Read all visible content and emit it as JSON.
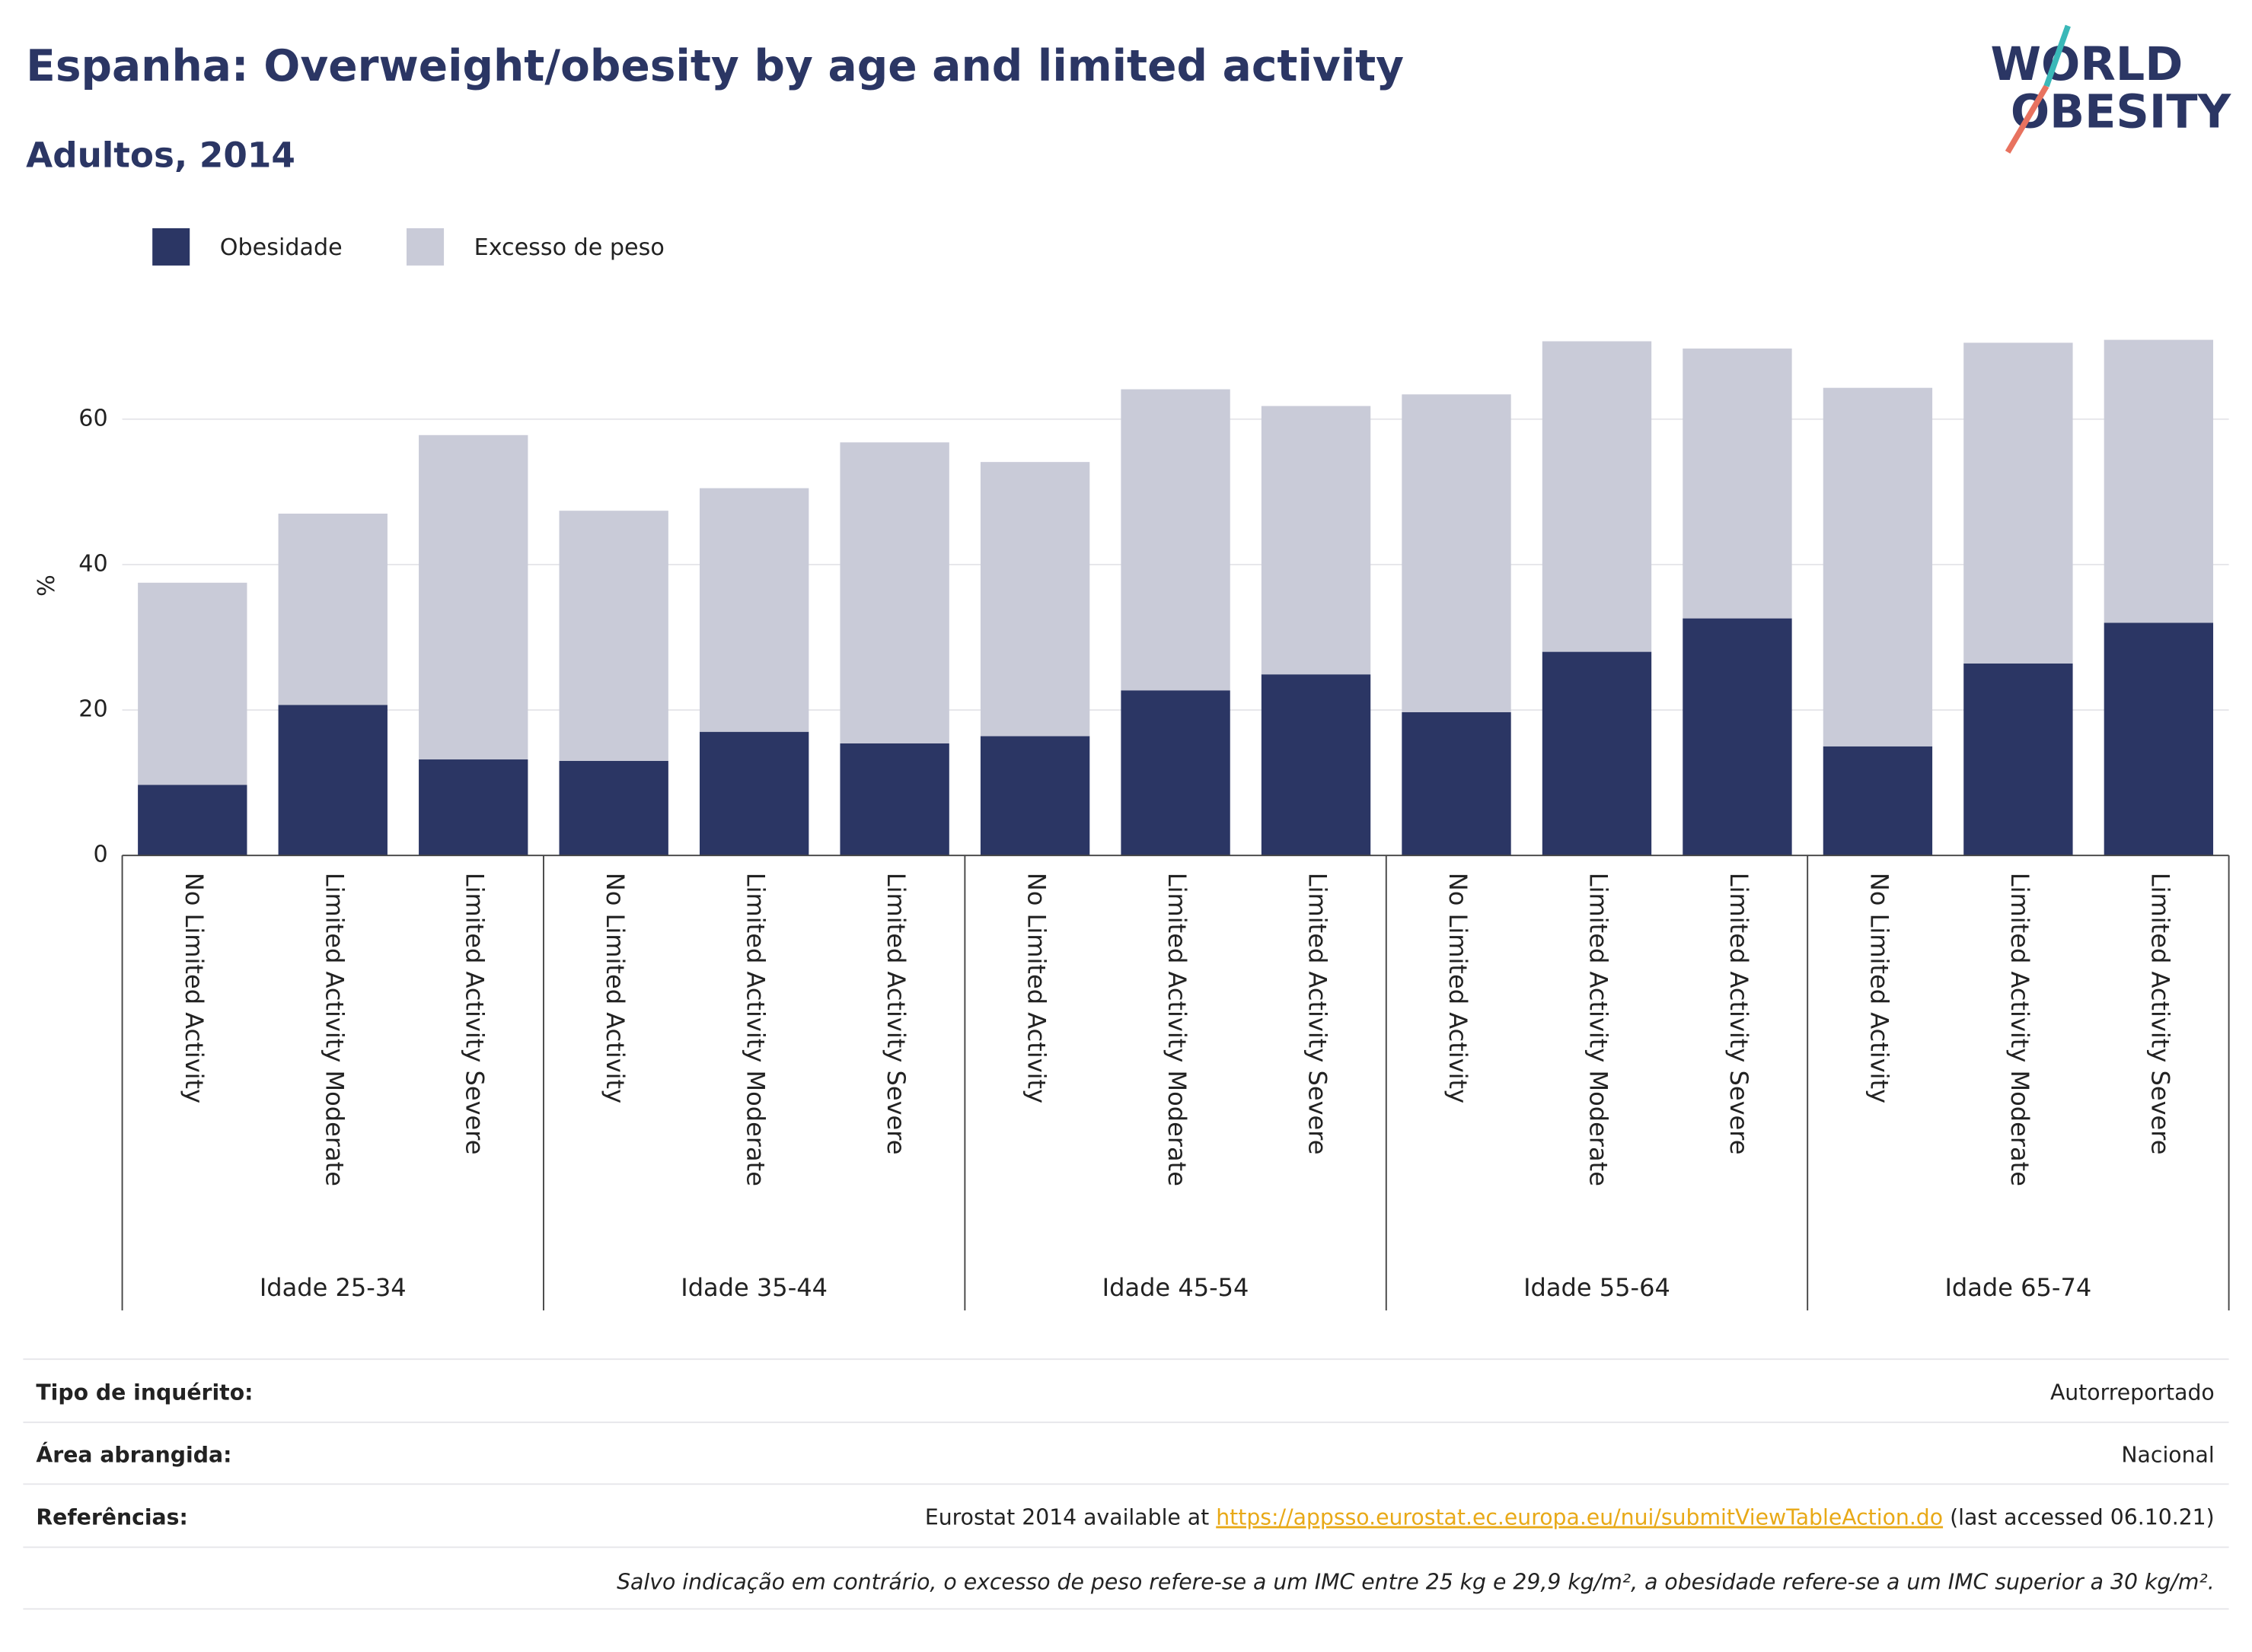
{
  "chart_data": {
    "type": "stacked_bar",
    "title": "Espanha: Overweight/obesity by age and limited activity",
    "subtitle": "Adultos, 2014",
    "logo": [
      "WORLD",
      "OBESITY"
    ],
    "y_label": "%",
    "groups": [
      "Idade 25-34",
      "Idade 35-44",
      "Idade 45-54",
      "Idade 55-64",
      "Idade 65-74"
    ],
    "categories": [
      "No Limited Activity",
      "Limited Activity Moderate",
      "Limited Activity Severe",
      "No Limited Activity",
      "Limited Activity Moderate",
      "Limited Activity Severe",
      "No Limited Activity",
      "Limited Activity Moderate",
      "Limited Activity Severe",
      "No Limited Activity",
      "Limited Activity Moderate",
      "Limited Activity Severe",
      "No Limited Activity",
      "Limited Activity Moderate",
      "Limited Activity Severe"
    ],
    "series": [
      {
        "name": "Obesidade",
        "color": "#2b3664",
        "values": [
          9.7,
          20.7,
          13.2,
          13.0,
          17.0,
          15.4,
          16.4,
          22.7,
          24.9,
          19.7,
          28.0,
          32.6,
          15.0,
          26.4,
          32.0
        ]
      },
      {
        "name": "Excesso de peso",
        "color": "#c9cbd8",
        "values": [
          27.8,
          26.3,
          44.6,
          34.4,
          33.5,
          41.4,
          37.7,
          41.4,
          36.9,
          43.7,
          42.7,
          37.1,
          49.3,
          44.1,
          38.9
        ]
      }
    ],
    "ylim": [
      0,
      75
    ],
    "yticks": [
      0,
      20,
      40,
      60
    ],
    "grid": true,
    "legend": "top-left"
  },
  "footer": {
    "rows": [
      {
        "label": "Tipo de inquérito:",
        "value": "Autorreportado"
      },
      {
        "label": "Área abrangida:",
        "value": "Nacional"
      },
      {
        "label": "Referências:",
        "value_prefix": "Eurostat 2014 available at ",
        "link": "https://appsso.eurostat.ec.europa.eu/nui/submitViewTableAction.do",
        "value_suffix": " (last accessed 06.10.21)"
      }
    ],
    "note": "Salvo indicação em contrário, o excesso de peso refere-se a um IMC entre 25 kg e 29,9 kg/m², a obesidade refere-se a um IMC superior a 30 kg/m²."
  }
}
